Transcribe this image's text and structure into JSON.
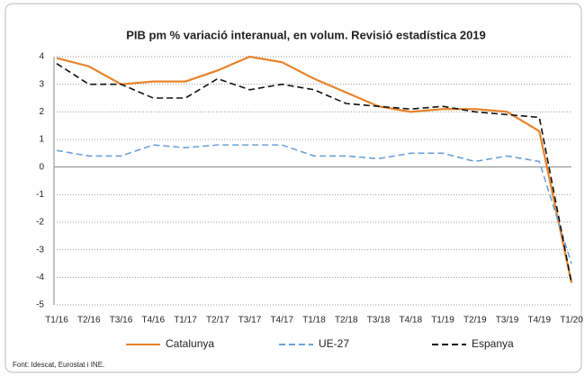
{
  "chart_data": {
    "type": "line",
    "title": "PIB pm % variació interanual, en volum. Revisió estadística 2019",
    "categories": [
      "T1/16",
      "T2/16",
      "T3/16",
      "T4/16",
      "T1/17",
      "T2/17",
      "T3/17",
      "T4/17",
      "T1/18",
      "T2/18",
      "T3/18",
      "T4/18",
      "T1/19",
      "T2/19",
      "T3/19",
      "T4/19",
      "T1/20"
    ],
    "series": [
      {
        "name": "Catalunya",
        "color": "#e8822a",
        "dash": "solid",
        "values": [
          3.95,
          3.65,
          3.0,
          3.1,
          3.1,
          3.5,
          4.0,
          3.8,
          3.2,
          2.7,
          2.2,
          2.0,
          2.1,
          2.1,
          2.0,
          1.3,
          -4.2
        ]
      },
      {
        "name": "UE-27",
        "color": "#6aa2d8",
        "dash": "dashed",
        "values": [
          0.6,
          0.4,
          0.4,
          0.8,
          0.7,
          0.8,
          0.8,
          0.8,
          0.4,
          0.4,
          0.3,
          0.5,
          0.5,
          0.2,
          0.4,
          0.2,
          -3.5
        ]
      },
      {
        "name": "Espanya",
        "color": "#111111",
        "dash": "dashed",
        "values": [
          3.75,
          3.0,
          3.0,
          2.5,
          2.5,
          3.2,
          2.8,
          3.0,
          2.8,
          2.3,
          2.2,
          2.1,
          2.2,
          2.0,
          1.9,
          1.8,
          -4.2
        ]
      }
    ],
    "ylim": [
      -5,
      4
    ],
    "yticks": [
      4,
      3,
      2,
      1,
      0,
      -1,
      -2,
      -3,
      -4,
      -5
    ],
    "grid": true,
    "legend": "bottom",
    "source": "Font: Idescat, Eurostat i INE."
  }
}
